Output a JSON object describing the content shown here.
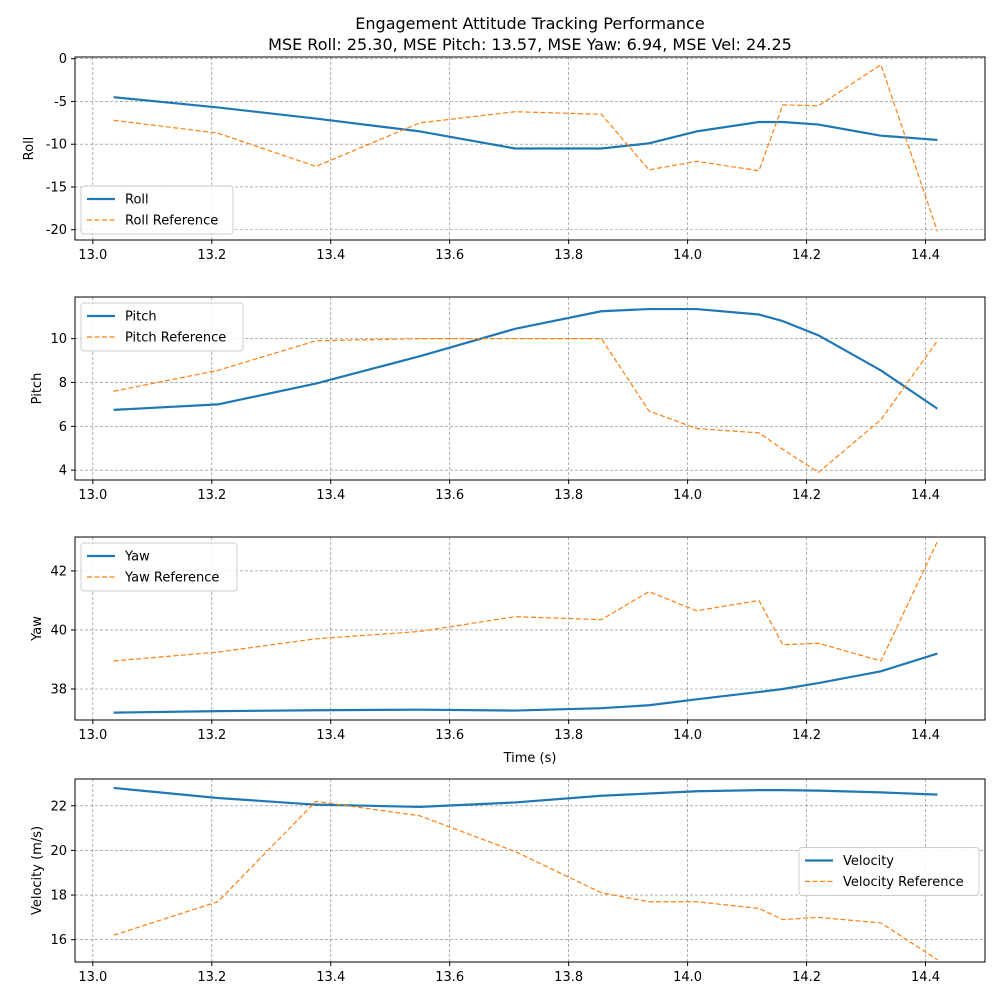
{
  "figure": {
    "title_line1": "Engagement Attitude Tracking Performance",
    "title_line2": "MSE Roll: 25.30, MSE Pitch: 13.57, MSE Yaw: 6.94, MSE Vel: 24.25"
  },
  "colors": {
    "actual": "#1f77b4",
    "reference": "#ff7f0e",
    "grid": "#808080"
  },
  "chart_data": [
    {
      "type": "line",
      "ylabel": "Roll",
      "xlabel": "",
      "xlim": [
        12.97,
        14.5
      ],
      "ylim": [
        -21.2,
        0.2
      ],
      "xticks": [
        13.0,
        13.2,
        13.4,
        13.6,
        13.8,
        14.0,
        14.2,
        14.4
      ],
      "yticks": [
        0,
        -5,
        -10,
        -15,
        -20
      ],
      "grid": true,
      "legend_position": "lower-left",
      "x": [
        13.035,
        13.21,
        13.375,
        13.55,
        13.71,
        13.855,
        13.935,
        14.015,
        14.12,
        14.16,
        14.22,
        14.325,
        14.42
      ],
      "series": [
        {
          "name": "Roll",
          "style": "solid",
          "values": [
            -4.5,
            -5.7,
            -7.0,
            -8.5,
            -10.5,
            -10.5,
            -9.9,
            -8.5,
            -7.4,
            -7.4,
            -7.7,
            -9.0,
            -9.5
          ]
        },
        {
          "name": "Roll Reference",
          "style": "dashed",
          "values": [
            -7.2,
            -8.7,
            -12.6,
            -7.5,
            -6.2,
            -6.5,
            -13.0,
            -12.0,
            -13.1,
            -5.4,
            -5.5,
            -0.7,
            -20.2
          ]
        }
      ]
    },
    {
      "type": "line",
      "ylabel": "Pitch",
      "xlabel": "",
      "xlim": [
        12.97,
        14.5
      ],
      "ylim": [
        3.55,
        11.9
      ],
      "xticks": [
        13.0,
        13.2,
        13.4,
        13.6,
        13.8,
        14.0,
        14.2,
        14.4
      ],
      "yticks": [
        4,
        6,
        8,
        10
      ],
      "grid": true,
      "legend_position": "upper-left",
      "x": [
        13.035,
        13.21,
        13.375,
        13.55,
        13.71,
        13.855,
        13.935,
        14.015,
        14.12,
        14.16,
        14.22,
        14.325,
        14.42
      ],
      "series": [
        {
          "name": "Pitch",
          "style": "solid",
          "values": [
            6.75,
            7.0,
            7.95,
            9.2,
            10.45,
            11.25,
            11.35,
            11.35,
            11.1,
            10.8,
            10.15,
            8.55,
            6.8
          ]
        },
        {
          "name": "Pitch Reference",
          "style": "dashed",
          "values": [
            7.6,
            8.55,
            9.9,
            10.0,
            10.0,
            10.0,
            6.7,
            5.9,
            5.7,
            4.95,
            3.9,
            6.3,
            9.9
          ]
        }
      ]
    },
    {
      "type": "line",
      "ylabel": "Yaw",
      "xlabel": "Time (s)",
      "xlim": [
        12.97,
        14.5
      ],
      "ylim": [
        36.95,
        43.15
      ],
      "xticks": [
        13.0,
        13.2,
        13.4,
        13.6,
        13.8,
        14.0,
        14.2,
        14.4
      ],
      "yticks": [
        38,
        40,
        42
      ],
      "grid": true,
      "legend_position": "upper-left",
      "x": [
        13.035,
        13.21,
        13.375,
        13.55,
        13.71,
        13.855,
        13.935,
        14.015,
        14.12,
        14.16,
        14.22,
        14.325,
        14.42
      ],
      "series": [
        {
          "name": "Yaw",
          "style": "solid",
          "values": [
            37.2,
            37.25,
            37.28,
            37.3,
            37.27,
            37.35,
            37.45,
            37.65,
            37.9,
            38.0,
            38.2,
            38.6,
            39.2
          ]
        },
        {
          "name": "Yaw Reference",
          "style": "dashed",
          "values": [
            38.95,
            39.25,
            39.7,
            39.95,
            40.45,
            40.35,
            41.3,
            40.65,
            41.0,
            39.5,
            39.55,
            38.95,
            43.0
          ]
        }
      ]
    },
    {
      "type": "line",
      "ylabel": "Velocity (m/s)",
      "xlabel": "",
      "xlim": [
        12.97,
        14.5
      ],
      "ylim": [
        15.0,
        23.2
      ],
      "xticks": [
        13.0,
        13.2,
        13.4,
        13.6,
        13.8,
        14.0,
        14.2,
        14.4
      ],
      "yticks": [
        16,
        18,
        20,
        22
      ],
      "grid": true,
      "legend_position": "center-right",
      "x": [
        13.035,
        13.21,
        13.375,
        13.55,
        13.71,
        13.855,
        13.935,
        14.015,
        14.12,
        14.16,
        14.22,
        14.325,
        14.42
      ],
      "series": [
        {
          "name": "Velocity",
          "style": "solid",
          "values": [
            22.8,
            22.35,
            22.05,
            21.95,
            22.15,
            22.45,
            22.55,
            22.65,
            22.7,
            22.7,
            22.68,
            22.6,
            22.5
          ]
        },
        {
          "name": "Velocity Reference",
          "style": "dashed",
          "values": [
            16.2,
            17.7,
            22.2,
            21.55,
            19.95,
            18.1,
            17.7,
            17.7,
            17.4,
            16.9,
            17.0,
            16.75,
            15.1
          ]
        }
      ]
    }
  ]
}
